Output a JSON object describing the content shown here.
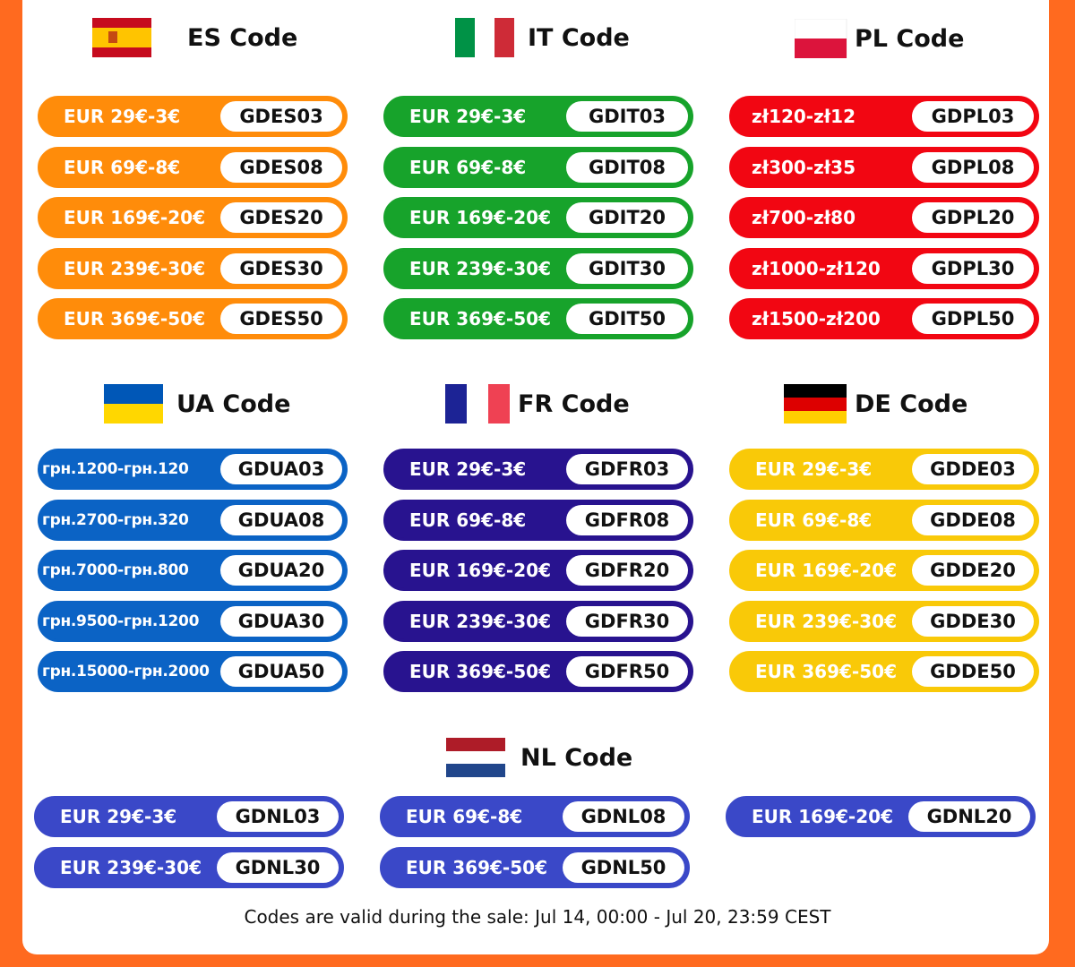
{
  "sections": [
    {
      "title": "ES Code",
      "codes": [
        {
          "discount": "EUR 29€-3€",
          "code": "GDES03"
        },
        {
          "discount": "EUR 69€-8€",
          "code": "GDES08"
        },
        {
          "discount": "EUR 169€-20€",
          "code": "GDES20"
        },
        {
          "discount": "EUR 239€-30€",
          "code": "GDES30"
        },
        {
          "discount": "EUR 369€-50€",
          "code": "GDES50"
        }
      ]
    },
    {
      "title": "IT Code",
      "codes": [
        {
          "discount": "EUR 29€-3€",
          "code": "GDIT03"
        },
        {
          "discount": "EUR 69€-8€",
          "code": "GDIT08"
        },
        {
          "discount": "EUR 169€-20€",
          "code": "GDIT20"
        },
        {
          "discount": "EUR 239€-30€",
          "code": "GDIT30"
        },
        {
          "discount": "EUR 369€-50€",
          "code": "GDIT50"
        }
      ]
    },
    {
      "title": "PL Code",
      "codes": [
        {
          "discount": "zł120-zł12",
          "code": "GDPL03"
        },
        {
          "discount": "zł300-zł35",
          "code": "GDPL08"
        },
        {
          "discount": "zł700-zł80",
          "code": "GDPL20"
        },
        {
          "discount": "zł1000-zł120",
          "code": "GDPL30"
        },
        {
          "discount": "zł1500-zł200",
          "code": "GDPL50"
        }
      ]
    },
    {
      "title": "UA Code",
      "codes": [
        {
          "discount": "грн.1200-грн.120",
          "code": "GDUA03"
        },
        {
          "discount": "грн.2700-грн.320",
          "code": "GDUA08"
        },
        {
          "discount": "грн.7000-грн.800",
          "code": "GDUA20"
        },
        {
          "discount": "грн.9500-грн.1200",
          "code": "GDUA30"
        },
        {
          "discount": "грн.15000-грн.2000",
          "code": "GDUA50"
        }
      ]
    },
    {
      "title": "FR Code",
      "codes": [
        {
          "discount": "EUR 29€-3€",
          "code": "GDFR03"
        },
        {
          "discount": "EUR 69€-8€",
          "code": "GDFR08"
        },
        {
          "discount": "EUR 169€-20€",
          "code": "GDFR20"
        },
        {
          "discount": "EUR 239€-30€",
          "code": "GDFR30"
        },
        {
          "discount": "EUR 369€-50€",
          "code": "GDFR50"
        }
      ]
    },
    {
      "title": "DE Code",
      "codes": [
        {
          "discount": "EUR 29€-3€",
          "code": "GDDE03"
        },
        {
          "discount": "EUR 69€-8€",
          "code": "GDDE08"
        },
        {
          "discount": "EUR 169€-20€",
          "code": "GDDE20"
        },
        {
          "discount": "EUR 239€-30€",
          "code": "GDDE30"
        },
        {
          "discount": "EUR 369€-50€",
          "code": "GDDE50"
        }
      ]
    },
    {
      "title": "NL Code",
      "codes": [
        {
          "discount": "EUR 29€-3€",
          "code": "GDNL03"
        },
        {
          "discount": "EUR 69€-8€",
          "code": "GDNL08"
        },
        {
          "discount": "EUR 169€-20€",
          "code": "GDNL20"
        },
        {
          "discount": "EUR 239€-30€",
          "code": "GDNL30"
        },
        {
          "discount": "EUR 369€-50€",
          "code": "GDNL50"
        }
      ]
    }
  ],
  "footer": "Codes are valid during the sale: Jul 14, 00:00 - Jul 20, 23:59 CEST"
}
